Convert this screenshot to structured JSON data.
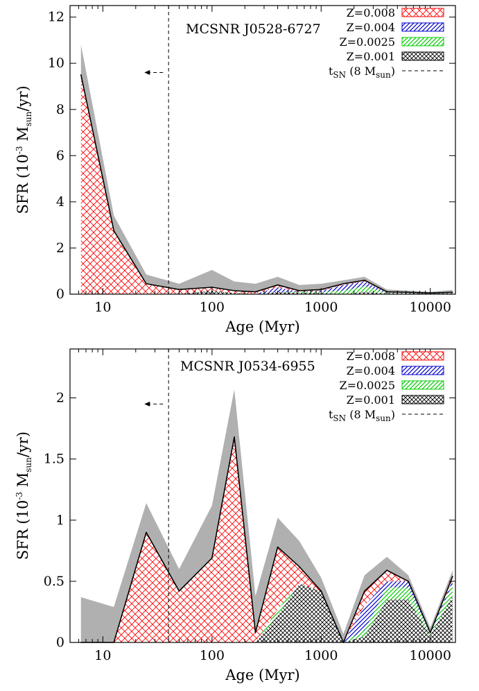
{
  "chart_data": [
    {
      "type": "area",
      "annotation": "MCSNR J0528-6727",
      "xlabel": "Age (Myr)",
      "ylabel_main": "SFR (10",
      "ylabel_exp": "-3",
      "ylabel_unit": " M",
      "ylabel_unit_sub": "sun",
      "ylabel_tail": "/yr)",
      "xscale": "log",
      "xlim": [
        5,
        17000
      ],
      "ylim": [
        0,
        12.5
      ],
      "xticks": [
        10,
        100,
        1000,
        10000
      ],
      "xtick_labels": [
        "10",
        "100",
        "1000",
        "10000"
      ],
      "yticks": [
        0,
        2,
        4,
        6,
        8,
        10,
        12
      ],
      "ytick_labels": [
        "0",
        "2",
        "4",
        "6",
        "8",
        "10",
        "12"
      ],
      "legend_position": "top-right",
      "sn_time_myr": 40,
      "sn_arrow_tip_myr": 24,
      "sn_arrow_y": 9.6,
      "x": [
        6.3,
        12.6,
        25,
        50,
        100,
        160,
        250,
        400,
        630,
        1000,
        1600,
        2500,
        4000,
        6300,
        10000,
        16000
      ],
      "total": [
        9.5,
        2.75,
        0.45,
        0.2,
        0.3,
        0.15,
        0.1,
        0.4,
        0.15,
        0.2,
        0.45,
        0.6,
        0.1,
        0.08,
        0.05,
        0.08
      ],
      "err_high": [
        10.8,
        3.4,
        0.85,
        0.45,
        1.05,
        0.55,
        0.45,
        0.75,
        0.4,
        0.45,
        0.6,
        0.75,
        0.2,
        0.15,
        0.1,
        0.18
      ],
      "err_low": [
        8.2,
        2.2,
        0.15,
        0.0,
        0.0,
        0.0,
        0.0,
        0.1,
        0.0,
        0.0,
        0.1,
        0.3,
        0.0,
        0.0,
        0.0,
        0.0
      ],
      "components": {
        "z0001": [
          0,
          0,
          0,
          0,
          0.15,
          0.05,
          0,
          0.1,
          0.05,
          0.05,
          0.0,
          0.1,
          0.03,
          0.03,
          0.02,
          0.03
        ],
        "z00025": [
          0,
          0,
          0,
          0,
          0,
          0,
          0,
          0.0,
          0.05,
          0.05,
          0.15,
          0.25,
          0.02,
          0.02,
          0.01,
          0.02
        ],
        "z0004": [
          0,
          0,
          0,
          0,
          0,
          0,
          0,
          0.2,
          0.0,
          0.05,
          0.25,
          0.2,
          0.02,
          0.01,
          0.01,
          0.01
        ],
        "z0008": [
          9.5,
          2.75,
          0.45,
          0.2,
          0.15,
          0.1,
          0.1,
          0.1,
          0.05,
          0.05,
          0.05,
          0.05,
          0.03,
          0.02,
          0.01,
          0.02
        ]
      }
    },
    {
      "type": "area",
      "annotation": "MCSNR J0534-6955",
      "xlabel": "Age (Myr)",
      "ylabel_main": "SFR (10",
      "ylabel_exp": "-3",
      "ylabel_unit": " M",
      "ylabel_unit_sub": "sun",
      "ylabel_tail": "/yr)",
      "xscale": "log",
      "xlim": [
        5,
        17000
      ],
      "ylim": [
        0,
        2.4
      ],
      "xticks": [
        10,
        100,
        1000,
        10000
      ],
      "xtick_labels": [
        "10",
        "100",
        "1000",
        "10000"
      ],
      "yticks": [
        0,
        0.5,
        1,
        1.5,
        2
      ],
      "ytick_labels": [
        "0",
        "0.5",
        "1",
        "1.5",
        "2"
      ],
      "legend_position": "top-right",
      "sn_time_myr": 40,
      "sn_arrow_tip_myr": 24,
      "sn_arrow_y": 1.95,
      "x": [
        6.3,
        12.6,
        25,
        50,
        100,
        160,
        250,
        400,
        630,
        1000,
        1600,
        2500,
        4000,
        6300,
        10000,
        16000
      ],
      "total": [
        0.0,
        0.0,
        0.9,
        0.42,
        0.69,
        1.68,
        0.08,
        0.78,
        0.62,
        0.42,
        0.0,
        0.42,
        0.59,
        0.5,
        0.08,
        0.54
      ],
      "err_high": [
        0.37,
        0.29,
        1.14,
        0.6,
        1.12,
        2.07,
        0.38,
        1.02,
        0.83,
        0.53,
        0.07,
        0.55,
        0.7,
        0.55,
        0.12,
        0.59
      ],
      "err_low": [
        0.0,
        0.0,
        0.65,
        0.28,
        0.45,
        1.35,
        0.0,
        0.55,
        0.42,
        0.3,
        0.0,
        0.3,
        0.48,
        0.4,
        0.02,
        0.45
      ],
      "components": {
        "z0001": [
          0,
          0,
          0,
          0,
          0,
          0,
          0,
          0.22,
          0.48,
          0.42,
          0,
          0.05,
          0.35,
          0.35,
          0.06,
          0.38
        ],
        "z00025": [
          0,
          0,
          0,
          0,
          0,
          0,
          0,
          0.05,
          0.0,
          0,
          0,
          0.05,
          0.1,
          0.1,
          0.01,
          0.1
        ],
        "z0004": [
          0,
          0,
          0,
          0,
          0,
          0,
          0,
          0.0,
          0.0,
          0,
          0,
          0.2,
          0.05,
          0.05,
          0.01,
          0.03
        ],
        "z0008": [
          0,
          0,
          0.9,
          0.42,
          0.69,
          1.68,
          0.08,
          0.51,
          0.14,
          0.0,
          0,
          0.12,
          0.09,
          0.0,
          0.0,
          0.03
        ]
      }
    }
  ],
  "legend": {
    "items": [
      {
        "key": "z0008",
        "label": "Z=0.008",
        "color": "#ff0000",
        "pattern": "crosshatch"
      },
      {
        "key": "z0004",
        "label": "Z=0.004",
        "color": "#0000cc",
        "pattern": "diagonal"
      },
      {
        "key": "z00025",
        "label": "Z=0.0025",
        "color": "#00cc00",
        "pattern": "diagonal"
      },
      {
        "key": "z0001",
        "label": "Z=0.001",
        "color": "#000000",
        "pattern": "dense-crosshatch"
      }
    ],
    "sn_label_main": "t",
    "sn_label_sub": "SN",
    "sn_label_mid": " (8 M",
    "sn_label_sub2": "sun",
    "sn_label_tail": ")"
  },
  "colors": {
    "error_band": "#b0b0b0",
    "line": "#000000"
  }
}
